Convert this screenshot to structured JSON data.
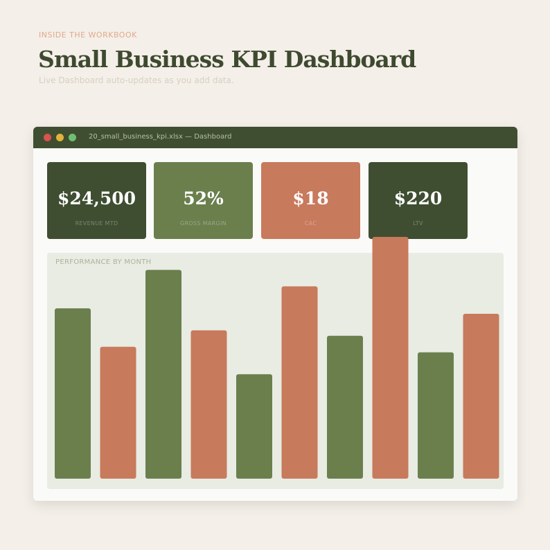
{
  "header": {
    "eyebrow": "INSIDE THE WORKBOOK",
    "title": "Small Business KPI Dashboard",
    "subtitle": "Live Dashboard auto-updates as you add data."
  },
  "window": {
    "filename": "20_small_business_kpi.xlsx — Dashboard",
    "controls": [
      "close",
      "minimize",
      "maximize"
    ]
  },
  "kpis": [
    {
      "value": "$24,500",
      "label": "REVENUE MTD",
      "color": "#3f4e31"
    },
    {
      "value": "52%",
      "label": "GROSS MARGIN",
      "color": "#6b7f4d"
    },
    {
      "value": "$18",
      "label": "CAC",
      "color": "#c87a5c"
    },
    {
      "value": "$220",
      "label": "LTV",
      "color": "#3f4e31"
    }
  ],
  "colors": {
    "green": "#6b7f4d",
    "orange": "#c87a5c",
    "dark_green": "#3f4e31"
  },
  "chart_data": {
    "type": "bar",
    "title": "PERFORMANCE BY MONTH",
    "values": [
      62,
      48,
      76,
      54,
      38,
      70,
      52,
      88,
      46,
      60
    ],
    "colors": [
      "#6b7f4d",
      "#c87a5c",
      "#6b7f4d",
      "#c87a5c",
      "#6b7f4d",
      "#c87a5c",
      "#6b7f4d",
      "#c87a5c",
      "#6b7f4d",
      "#c87a5c"
    ],
    "ylim": [
      0,
      88
    ],
    "grid": false
  }
}
